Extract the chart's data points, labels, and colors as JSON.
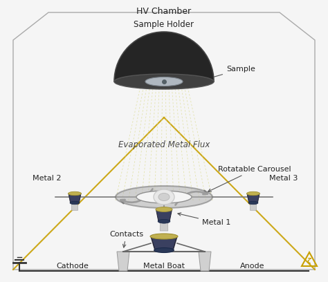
{
  "labels": {
    "hv_chamber": "HV Chamber",
    "sample_holder": "Sample Holder",
    "sample": "Sample",
    "evaporated_flux": "Evaporated Metal Flux",
    "rotatable_carousel": "Rotatable Carousel",
    "metal1": "Metal 1",
    "metal2": "Metal 2",
    "metal3": "Metal 3",
    "contacts": "Contacts",
    "metal_boat": "Metal Boat",
    "cathode": "Cathode",
    "anode": "Anode"
  },
  "bg_color": "#f5f5f5",
  "chamber_edge_color": "#aaaaaa",
  "gold_line_color": "#c8a000",
  "flux_line_color": "#e0e0a0",
  "dome_color": "#252525",
  "dome_edge_color": "#444444",
  "dome_rim_color": "#555555",
  "sample_disk_color": "#b0b8c0",
  "carousel_color": "#909090",
  "donut_color": "#e0e0e0",
  "boat_color": "#3a4060",
  "metal_material_color": "#c0b050",
  "wire_color": "#333333",
  "label_color": "#222222",
  "hv_triangle_color": "#c8a000",
  "arrow_color": "#888888"
}
